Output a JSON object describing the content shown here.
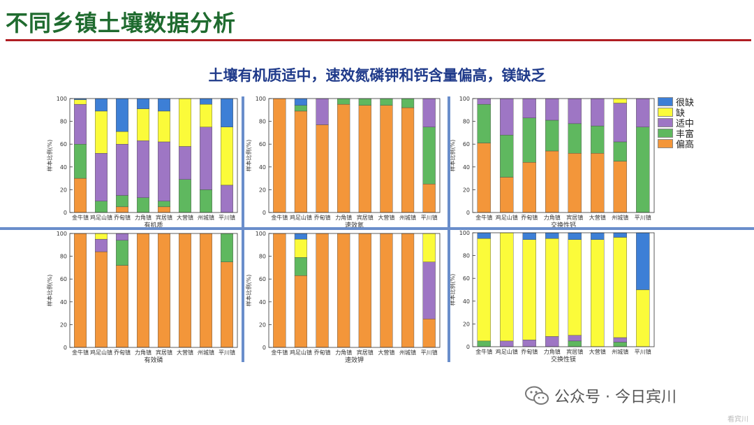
{
  "page": {
    "title": "不同乡镇土壤数据分析",
    "subtitle": "土壤有机质适中，速效氮磷钾和钙含量偏高，镁缺乏"
  },
  "legend": [
    {
      "label": "很缺",
      "color": "#3d7fd6"
    },
    {
      "label": "缺",
      "color": "#fbfb3a"
    },
    {
      "label": "适中",
      "color": "#9e76c4"
    },
    {
      "label": "丰富",
      "color": "#5fb85f"
    },
    {
      "label": "偏高",
      "color": "#f3963a"
    }
  ],
  "watermark": {
    "text": "公众号 · 今日宾川",
    "small": "看宾川",
    "icon": "wechat-icon"
  },
  "chart_data": [
    {
      "type": "bar",
      "stacked": true,
      "xlabel": "有机质",
      "ylabel": "样本比例(%)",
      "ylim": [
        0,
        100
      ],
      "yticks": [
        0,
        20,
        40,
        60,
        80,
        100
      ],
      "categories": [
        "金牛镇",
        "鸡足山镇",
        "乔甸镇",
        "力角镇",
        "宾居镇",
        "大营镇",
        "州城镇",
        "平川镇"
      ],
      "series": [
        {
          "name": "偏高",
          "values": [
            30,
            0,
            5,
            0,
            5,
            0,
            0,
            0
          ]
        },
        {
          "name": "丰富",
          "values": [
            30,
            10,
            10,
            13,
            5,
            29,
            20,
            0
          ]
        },
        {
          "name": "适中",
          "values": [
            35,
            42,
            45,
            50,
            52,
            29,
            55,
            24
          ]
        },
        {
          "name": "缺",
          "values": [
            4,
            37,
            11,
            28,
            27,
            42,
            20,
            51
          ]
        },
        {
          "name": "很缺",
          "values": [
            1,
            11,
            29,
            9,
            11,
            0,
            5,
            25
          ]
        }
      ]
    },
    {
      "type": "bar",
      "stacked": true,
      "xlabel": "速效氮",
      "ylabel": "样本比例(%)",
      "ylim": [
        0,
        100
      ],
      "yticks": [
        0,
        20,
        40,
        60,
        80,
        100
      ],
      "categories": [
        "金牛镇",
        "鸡足山镇",
        "乔甸镇",
        "力角镇",
        "宾居镇",
        "大营镇",
        "州城镇",
        "平川镇"
      ],
      "series": [
        {
          "name": "偏高",
          "values": [
            100,
            89,
            77,
            95,
            94,
            94,
            92,
            25
          ]
        },
        {
          "name": "丰富",
          "values": [
            0,
            5,
            0,
            5,
            6,
            6,
            8,
            50
          ]
        },
        {
          "name": "适中",
          "values": [
            0,
            0,
            23,
            0,
            0,
            0,
            0,
            25
          ]
        },
        {
          "name": "缺",
          "values": [
            0,
            0,
            0,
            0,
            0,
            0,
            0,
            0
          ]
        },
        {
          "name": "很缺",
          "values": [
            0,
            6,
            0,
            0,
            0,
            0,
            0,
            0
          ]
        }
      ]
    },
    {
      "type": "bar",
      "stacked": true,
      "xlabel": "交换性钙",
      "ylabel": "样本比例(%)",
      "ylim": [
        0,
        100
      ],
      "yticks": [
        0,
        20,
        40,
        60,
        80,
        100
      ],
      "categories": [
        "金牛镇",
        "鸡足山镇",
        "乔甸镇",
        "力角镇",
        "宾居镇",
        "大营镇",
        "州城镇",
        "平川镇"
      ],
      "series": [
        {
          "name": "偏高",
          "values": [
            61,
            31,
            44,
            54,
            52,
            52,
            45,
            0
          ]
        },
        {
          "name": "丰富",
          "values": [
            34,
            37,
            39,
            27,
            26,
            24,
            17,
            75
          ]
        },
        {
          "name": "适中",
          "values": [
            5,
            32,
            17,
            19,
            22,
            24,
            34,
            25
          ]
        },
        {
          "name": "缺",
          "values": [
            0,
            0,
            0,
            0,
            0,
            0,
            4,
            0
          ]
        },
        {
          "name": "很缺",
          "values": [
            0,
            0,
            0,
            0,
            0,
            0,
            0,
            0
          ]
        }
      ]
    },
    {
      "type": "bar",
      "stacked": true,
      "xlabel": "有效磷",
      "ylabel": "样本比例(%)",
      "ylim": [
        0,
        100
      ],
      "yticks": [
        0,
        20,
        40,
        60,
        80,
        100
      ],
      "categories": [
        "金牛镇",
        "鸡足山镇",
        "乔甸镇",
        "力角镇",
        "宾居镇",
        "大营镇",
        "州城镇",
        "平川镇"
      ],
      "series": [
        {
          "name": "偏高",
          "values": [
            100,
            84,
            72,
            100,
            100,
            100,
            100,
            75
          ]
        },
        {
          "name": "丰富",
          "values": [
            0,
            0,
            22,
            0,
            0,
            0,
            0,
            25
          ]
        },
        {
          "name": "适中",
          "values": [
            0,
            11,
            6,
            0,
            0,
            0,
            0,
            0
          ]
        },
        {
          "name": "缺",
          "values": [
            0,
            5,
            0,
            0,
            0,
            0,
            0,
            0
          ]
        },
        {
          "name": "很缺",
          "values": [
            0,
            0,
            0,
            0,
            0,
            0,
            0,
            0
          ]
        }
      ]
    },
    {
      "type": "bar",
      "stacked": true,
      "xlabel": "速效钾",
      "ylabel": "样本比例(%)",
      "ylim": [
        0,
        100
      ],
      "yticks": [
        0,
        20,
        40,
        60,
        80,
        100
      ],
      "categories": [
        "金牛镇",
        "鸡足山镇",
        "乔甸镇",
        "力角镇",
        "宾居镇",
        "大营镇",
        "州城镇",
        "平川镇"
      ],
      "series": [
        {
          "name": "偏高",
          "values": [
            100,
            63,
            100,
            100,
            100,
            100,
            100,
            25
          ]
        },
        {
          "name": "丰富",
          "values": [
            0,
            16,
            0,
            0,
            0,
            0,
            0,
            0
          ]
        },
        {
          "name": "适中",
          "values": [
            0,
            0,
            0,
            0,
            0,
            0,
            0,
            50
          ]
        },
        {
          "name": "缺",
          "values": [
            0,
            16,
            0,
            0,
            0,
            0,
            0,
            25
          ]
        },
        {
          "name": "很缺",
          "values": [
            0,
            5,
            0,
            0,
            0,
            0,
            0,
            0
          ]
        }
      ]
    },
    {
      "type": "bar",
      "stacked": true,
      "xlabel": "交换性镁",
      "ylabel": "样本比例(%)",
      "ylim": [
        0,
        100
      ],
      "yticks": [
        0,
        20,
        40,
        60,
        80,
        100
      ],
      "categories": [
        "金牛镇",
        "鸡足山镇",
        "乔甸镇",
        "力角镇",
        "宾居镇",
        "大营镇",
        "州城镇",
        "平川镇"
      ],
      "series": [
        {
          "name": "偏高",
          "values": [
            0,
            0,
            0,
            0,
            0,
            0,
            0,
            0
          ]
        },
        {
          "name": "丰富",
          "values": [
            5,
            0,
            0,
            0,
            5,
            0,
            4,
            0
          ]
        },
        {
          "name": "适中",
          "values": [
            0,
            5,
            6,
            9,
            5,
            0,
            4,
            0
          ]
        },
        {
          "name": "缺",
          "values": [
            90,
            95,
            88,
            86,
            84,
            94,
            88,
            50
          ]
        },
        {
          "name": "很缺",
          "values": [
            5,
            0,
            6,
            5,
            6,
            6,
            4,
            50
          ]
        }
      ]
    }
  ]
}
